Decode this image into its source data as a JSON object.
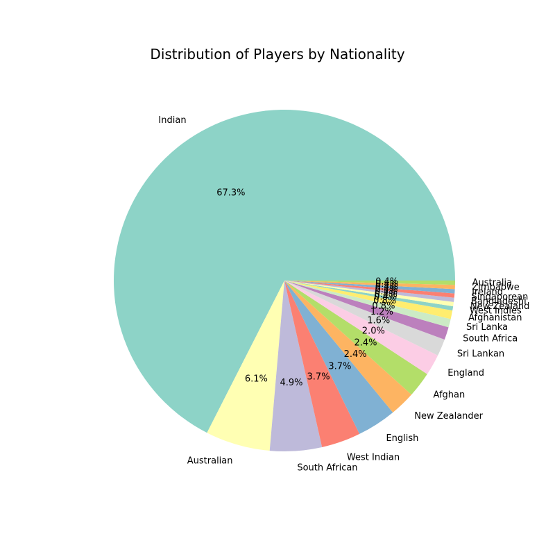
{
  "chart_data": {
    "type": "pie",
    "title": "Distribution of Players by Nationality",
    "start_angle_deg": 0,
    "direction": "counterclockwise",
    "slices": [
      {
        "label": "Indian",
        "value": 67.3,
        "pct_label": "67.3%",
        "color": "#8dd3c7"
      },
      {
        "label": "Australian",
        "value": 6.1,
        "pct_label": "6.1%",
        "color": "#ffffb3"
      },
      {
        "label": "South African",
        "value": 4.9,
        "pct_label": "4.9%",
        "color": "#bebada"
      },
      {
        "label": "West Indian",
        "value": 3.7,
        "pct_label": "3.7%",
        "color": "#fb8072"
      },
      {
        "label": "English",
        "value": 3.7,
        "pct_label": "3.7%",
        "color": "#80b1d3"
      },
      {
        "label": "New Zealander",
        "value": 2.4,
        "pct_label": "2.4%",
        "color": "#fdb462"
      },
      {
        "label": "Afghan",
        "value": 2.4,
        "pct_label": "2.4%",
        "color": "#b3de69"
      },
      {
        "label": "England",
        "value": 2.0,
        "pct_label": "2.0%",
        "color": "#fccde5"
      },
      {
        "label": "Sri Lankan",
        "value": 1.6,
        "pct_label": "1.6%",
        "color": "#d9d9d9"
      },
      {
        "label": "South Africa",
        "value": 1.2,
        "pct_label": "1.2%",
        "color": "#bc80bd"
      },
      {
        "label": "Sri Lanka",
        "value": 0.8,
        "pct_label": "0.8%",
        "color": "#ccebc5"
      },
      {
        "label": "Afghanistan",
        "value": 0.8,
        "pct_label": "0.8%",
        "color": "#ffed6f"
      },
      {
        "label": "West Indies",
        "value": 0.4,
        "pct_label": "0.4%",
        "color": "#8dd3c7"
      },
      {
        "label": "New Zealand",
        "value": 0.4,
        "pct_label": "0.4%",
        "color": "#ffffb3"
      },
      {
        "label": "Bangladeshi",
        "value": 0.4,
        "pct_label": "0.4%",
        "color": "#bebada"
      },
      {
        "label": "Singaporean",
        "value": 0.4,
        "pct_label": "0.4%",
        "color": "#fb8072"
      },
      {
        "label": "Ireland",
        "value": 0.4,
        "pct_label": "0.4%",
        "color": "#80b1d3"
      },
      {
        "label": "Zimbabwe",
        "value": 0.4,
        "pct_label": "0.4%",
        "color": "#fdb462"
      },
      {
        "label": "Australia",
        "value": 0.4,
        "pct_label": "0.4%",
        "color": "#b3de69"
      }
    ]
  }
}
